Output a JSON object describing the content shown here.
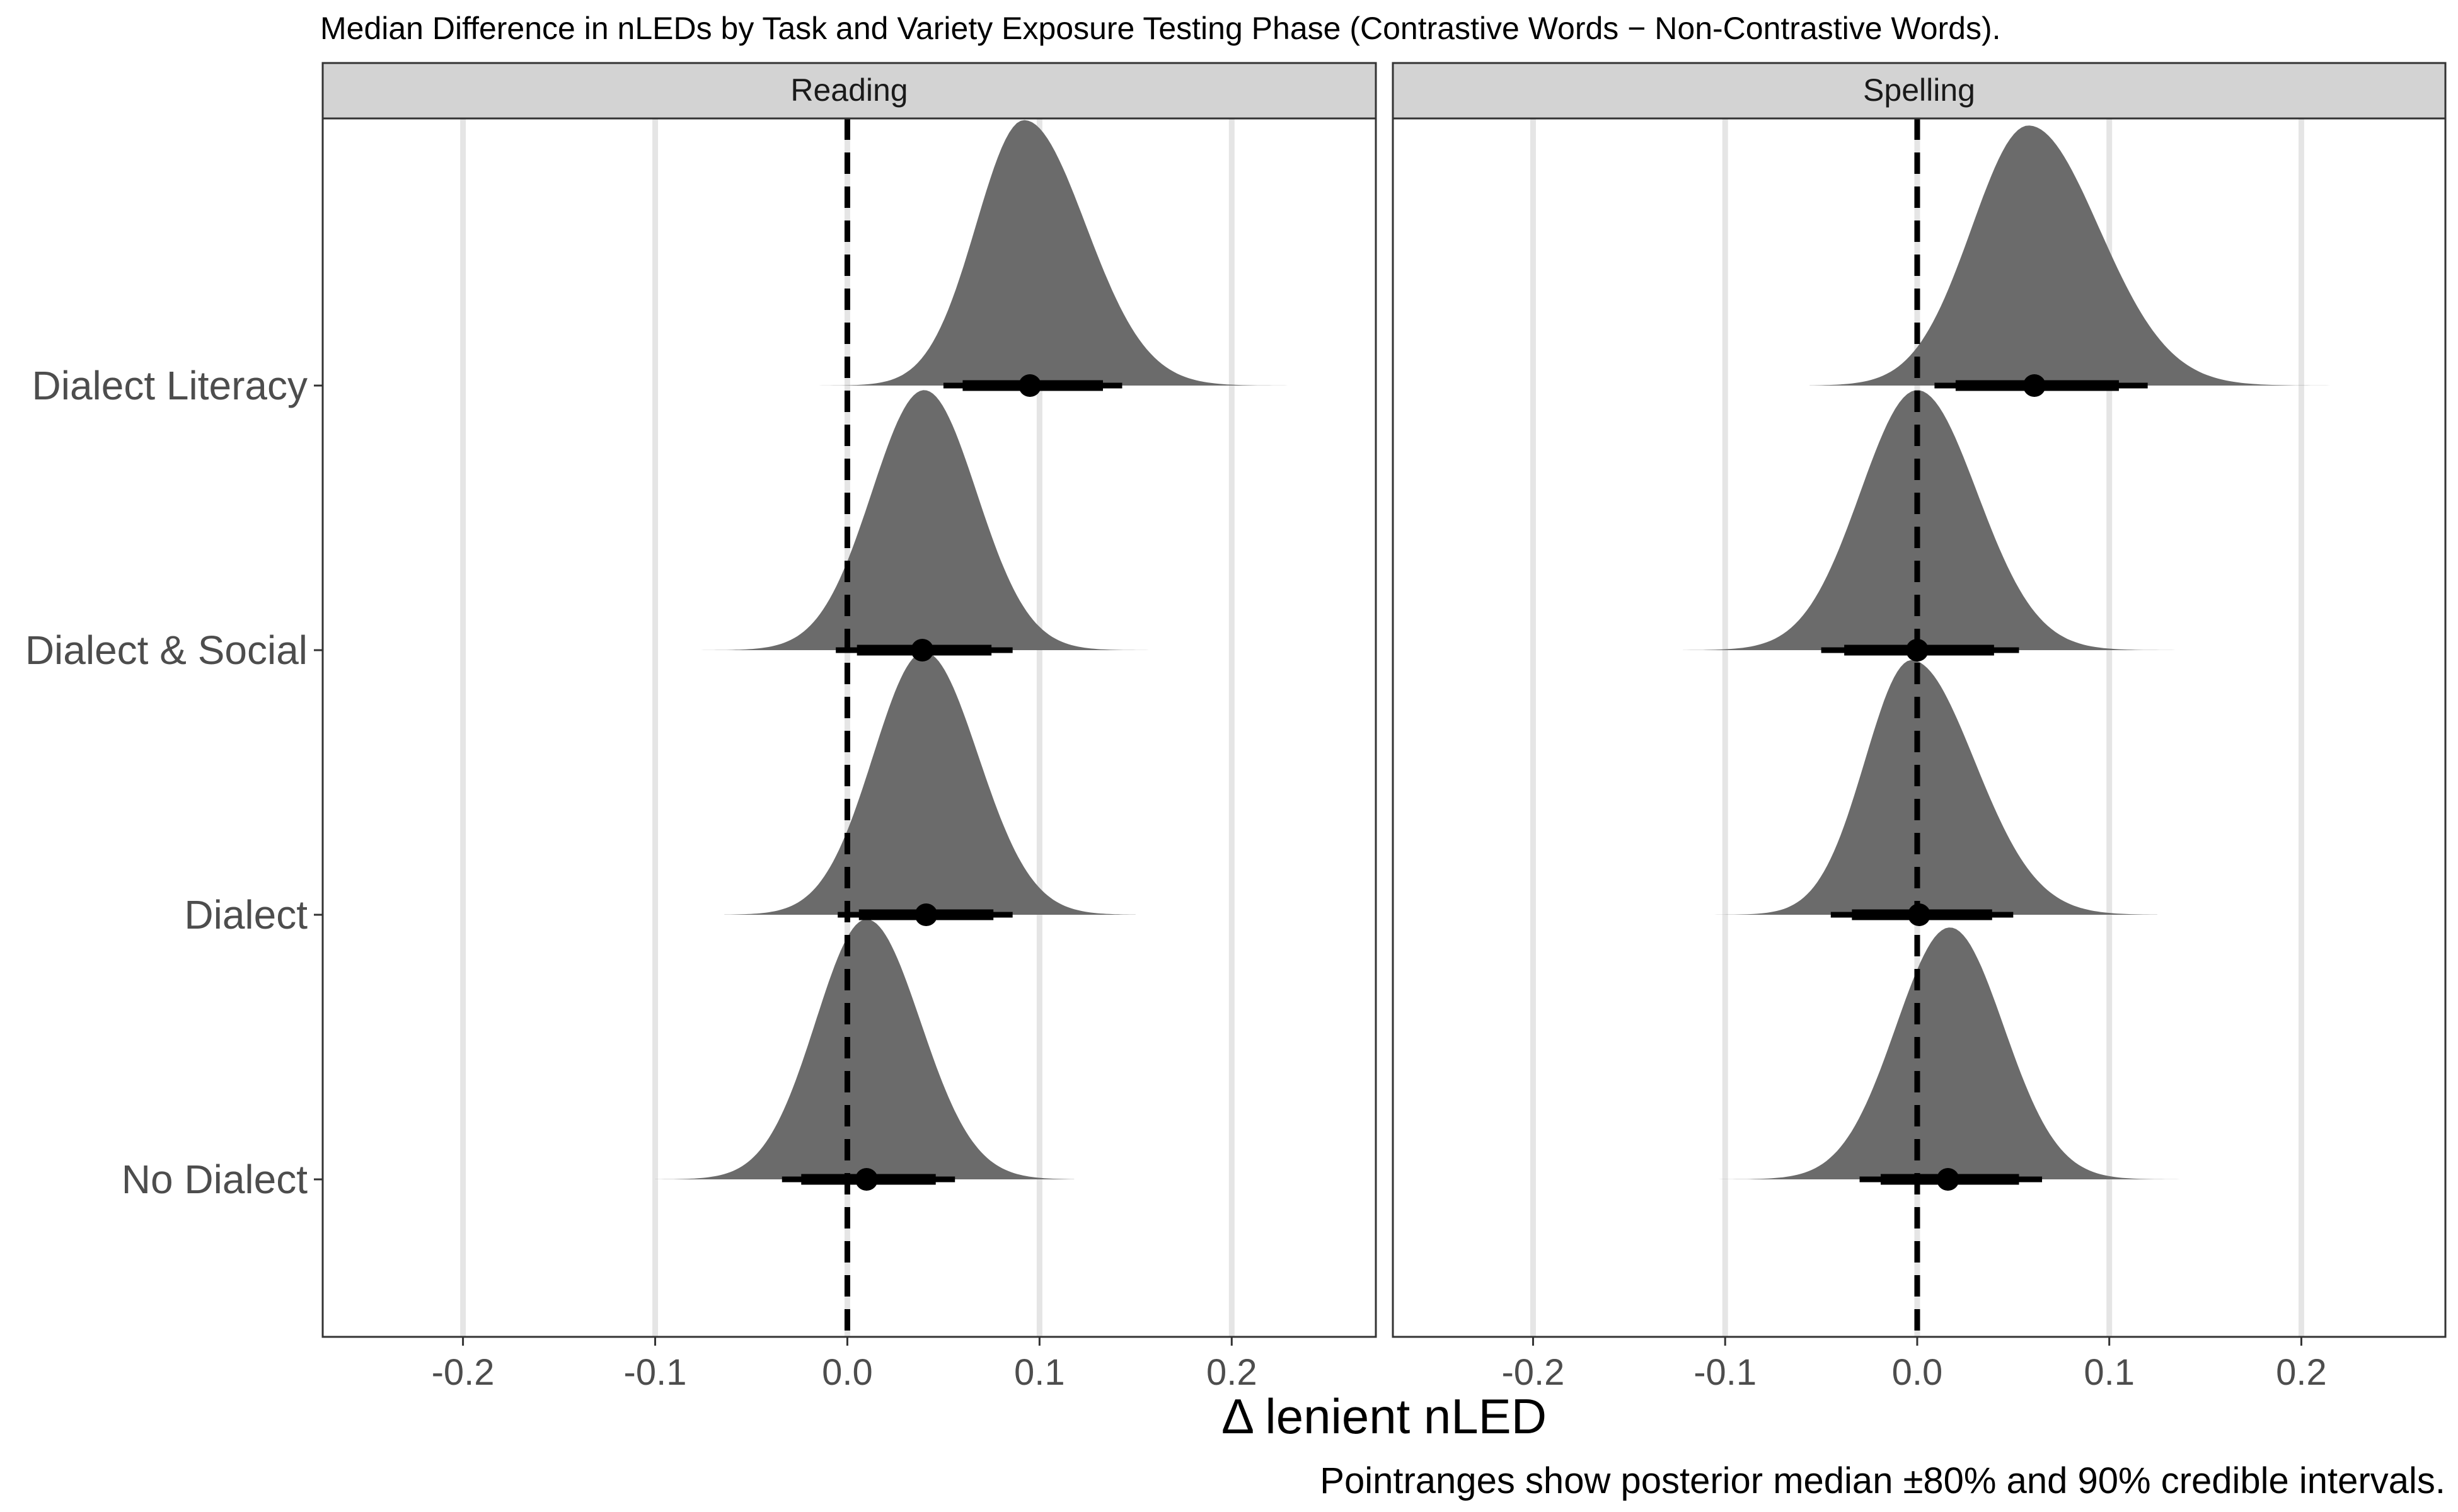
{
  "chart_data": {
    "type": "ridgeline-density-with-pointrange",
    "title": "Median Difference in nLEDs by Task and Variety Exposure Testing Phase (Contrastive Words − Non-Contrastive Words).",
    "xlabel": "Δ lenient nLED",
    "caption": "Pointranges show posterior median ±80% and 90% credible intervals.",
    "xlim": [
      -0.273,
      0.275
    ],
    "x_ticks": [
      -0.2,
      -0.1,
      0.0,
      0.1,
      0.2
    ],
    "x_tick_labels": [
      "-0.2",
      "-0.1",
      "0.0",
      "0.1",
      "0.2"
    ],
    "reference_line": 0.0,
    "categories": [
      "Dialect Literacy",
      "Dialect & Social",
      "Dialect",
      "No Dialect"
    ],
    "facets": [
      {
        "name": "Reading",
        "groups": [
          {
            "category": "Dialect Literacy",
            "median": 0.095,
            "ci80": [
              0.06,
              0.133
            ],
            "ci90": [
              0.05,
              0.143
            ],
            "density_range": [
              -0.021,
              0.257
            ],
            "density_mode": 0.092,
            "peak_height": 0.98
          },
          {
            "category": "Dialect & Social",
            "median": 0.039,
            "ci80": [
              0.005,
              0.075
            ],
            "ci90": [
              -0.006,
              0.086
            ],
            "density_range": [
              -0.078,
              0.157
            ],
            "density_mode": 0.04,
            "peak_height": 0.96
          },
          {
            "category": "Dialect",
            "median": 0.041,
            "ci80": [
              0.006,
              0.076
            ],
            "ci90": [
              -0.005,
              0.086
            ],
            "density_range": [
              -0.064,
              0.15
            ],
            "density_mode": 0.04,
            "peak_height": 0.97
          },
          {
            "category": "No Dialect",
            "median": 0.01,
            "ci80": [
              -0.024,
              0.046
            ],
            "ci90": [
              -0.034,
              0.056
            ],
            "density_range": [
              -0.1,
              0.118
            ],
            "density_mode": 0.01,
            "peak_height": 0.96
          }
        ]
      },
      {
        "name": "Spelling",
        "groups": [
          {
            "category": "Dialect Literacy",
            "median": 0.061,
            "ci80": [
              0.02,
              0.105
            ],
            "ci90": [
              0.009,
              0.12
            ],
            "density_range": [
              -0.056,
              0.225
            ],
            "density_mode": 0.058,
            "peak_height": 0.96
          },
          {
            "category": "Dialect & Social",
            "median": 0.0,
            "ci80": [
              -0.038,
              0.04
            ],
            "ci90": [
              -0.05,
              0.053
            ],
            "density_range": [
              -0.122,
              0.17
            ],
            "density_mode": 0.0,
            "peak_height": 0.96
          },
          {
            "category": "Dialect",
            "median": 0.001,
            "ci80": [
              -0.034,
              0.039
            ],
            "ci90": [
              -0.045,
              0.05
            ],
            "density_range": [
              -0.118,
              0.125
            ],
            "density_mode": -0.003,
            "peak_height": 0.94
          },
          {
            "category": "No Dialect",
            "median": 0.016,
            "ci80": [
              -0.019,
              0.053
            ],
            "ci90": [
              -0.03,
              0.065
            ],
            "density_range": [
              -0.115,
              0.148
            ],
            "density_mode": 0.017,
            "peak_height": 0.93
          }
        ]
      }
    ],
    "colors": {
      "density_fill": "#6b6b6b",
      "pointrange": "#000000",
      "strip_fill": "#d3d3d3",
      "gridline": "#e5e5e5",
      "axis_text": "#4d4d4d"
    }
  }
}
